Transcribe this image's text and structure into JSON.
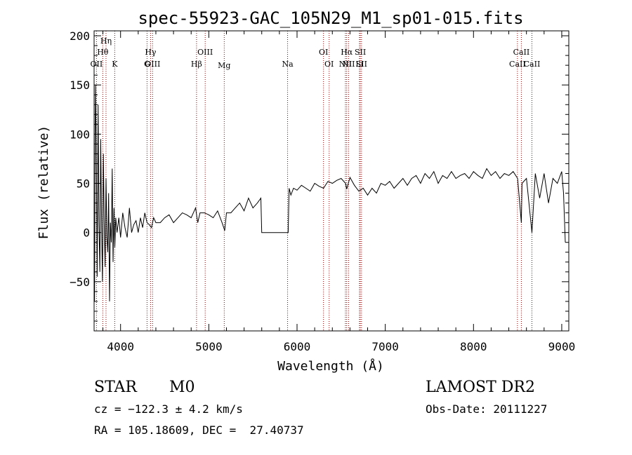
{
  "chart_data": {
    "type": "line",
    "title": "spec-55923-GAC_105N29_M1_sp01-015.fits",
    "xlabel": "Wavelength (Å)",
    "ylabel": "Flux (relative)",
    "xlim": [
      3700,
      9080
    ],
    "ylim": [
      -100,
      205
    ],
    "xticks": [
      4000,
      5000,
      6000,
      7000,
      8000,
      9000
    ],
    "yticks": [
      -50,
      0,
      50,
      100,
      150,
      200
    ],
    "ytick_labels": [
      "−50",
      "0",
      "50",
      "100",
      "150",
      "200"
    ],
    "grid": false,
    "legend": "none",
    "series": [
      {
        "x": [
          3705,
          3715,
          3725,
          3735,
          3745,
          3755,
          3765,
          3775,
          3785,
          3795,
          3805,
          3815,
          3825,
          3835,
          3845,
          3855,
          3865,
          3875,
          3885,
          3895,
          3905,
          3915,
          3925,
          3935,
          3945,
          3960,
          3980,
          4000,
          4025,
          4050,
          4075,
          4100,
          4125,
          4150,
          4175,
          4200,
          4225,
          4250,
          4275,
          4300,
          4325,
          4350,
          4375,
          4400,
          4450,
          4500,
          4550,
          4600,
          4650,
          4700,
          4750,
          4800,
          4850,
          4875,
          4900,
          4950,
          5000,
          5050,
          5100,
          5150,
          5180,
          5200,
          5250,
          5300,
          5350,
          5400,
          5450,
          5500,
          5550,
          5590,
          5600,
          5700,
          5800,
          5900,
          5910,
          5930,
          5960,
          6000,
          6050,
          6100,
          6150,
          6200,
          6250,
          6300,
          6350,
          6400,
          6450,
          6500,
          6550,
          6563,
          6600,
          6650,
          6700,
          6750,
          6800,
          6850,
          6900,
          6950,
          7000,
          7050,
          7100,
          7150,
          7200,
          7250,
          7300,
          7350,
          7400,
          7450,
          7500,
          7550,
          7600,
          7650,
          7700,
          7750,
          7800,
          7850,
          7900,
          7950,
          8000,
          8050,
          8100,
          8150,
          8200,
          8250,
          8300,
          8350,
          8400,
          8450,
          8500,
          8542,
          8550,
          8600,
          8662,
          8700,
          8750,
          8800,
          8850,
          8900,
          8950,
          9000,
          9020,
          9040
        ],
        "y": [
          -70,
          150,
          90,
          -45,
          130,
          10,
          -40,
          95,
          5,
          -50,
          80,
          10,
          -35,
          55,
          -5,
          -20,
          40,
          -70,
          10,
          -10,
          65,
          -30,
          25,
          -15,
          15,
          0,
          15,
          -5,
          20,
          5,
          -5,
          25,
          0,
          8,
          12,
          0,
          15,
          5,
          20,
          10,
          8,
          5,
          15,
          10,
          10,
          15,
          18,
          10,
          15,
          20,
          18,
          15,
          25,
          10,
          20,
          20,
          18,
          15,
          22,
          10,
          2,
          20,
          20,
          25,
          30,
          22,
          35,
          25,
          30,
          35,
          0,
          0,
          0,
          0,
          45,
          38,
          45,
          43,
          48,
          45,
          42,
          50,
          47,
          45,
          52,
          50,
          53,
          55,
          50,
          44,
          56,
          48,
          42,
          45,
          38,
          45,
          40,
          50,
          48,
          52,
          45,
          50,
          55,
          48,
          55,
          58,
          50,
          60,
          55,
          62,
          50,
          58,
          55,
          62,
          55,
          58,
          60,
          55,
          62,
          58,
          55,
          65,
          58,
          62,
          55,
          60,
          58,
          62,
          55,
          10,
          50,
          55,
          0,
          60,
          35,
          60,
          30,
          55,
          50,
          62,
          40,
          -10
        ]
      }
    ],
    "line_markers": [
      {
        "x": 3727,
        "row": 3,
        "label": "OII"
      },
      {
        "x": 3798,
        "row": 1,
        "label": "Hθ"
      },
      {
        "x": 3835,
        "row": 0,
        "label": "Hη"
      },
      {
        "x": 3934,
        "row": 3,
        "label": "K"
      },
      {
        "x": 4300,
        "row": 2,
        "label": "G"
      },
      {
        "x": 4340,
        "row": 1,
        "label": "Hγ"
      },
      {
        "x": 4363,
        "row": 3,
        "label": "OIII"
      },
      {
        "x": 4861,
        "row": 2,
        "label": "Hβ"
      },
      {
        "x": 4959,
        "row": 1,
        "label": "OIII"
      },
      {
        "x": 5175,
        "row": 4,
        "label": "Mg"
      },
      {
        "x": 5893,
        "row": 2,
        "label": "Na"
      },
      {
        "x": 6300,
        "row": 1,
        "label": "OI"
      },
      {
        "x": 6364,
        "row": 3,
        "label": "OI"
      },
      {
        "x": 6548,
        "row": 2,
        "label": "NII"
      },
      {
        "x": 6563,
        "row": 1,
        "label": "Hα"
      },
      {
        "x": 6584,
        "row": 3,
        "label": "NII"
      },
      {
        "x": 6707,
        "row": 2,
        "label": "Li"
      },
      {
        "x": 6717,
        "row": 1,
        "label": "SII"
      },
      {
        "x": 6731,
        "row": 3,
        "label": "SII"
      },
      {
        "x": 8498,
        "row": 2,
        "label": "CaII"
      },
      {
        "x": 8542,
        "row": 1,
        "label": "CaII"
      },
      {
        "x": 8662,
        "row": 3,
        "label": "CaII"
      }
    ],
    "colors": {
      "spectrum": "#000000",
      "markers": "#8b0000",
      "axes": "#000000"
    }
  },
  "info": {
    "class": "STAR",
    "subclass": "M0",
    "survey": "LAMOST DR2",
    "cz": "cz = −122.3 ± 4.2 km/s",
    "obs_date": "Obs-Date: 20111227",
    "radec": "RA = 105.18609, DEC =  27.40737"
  }
}
